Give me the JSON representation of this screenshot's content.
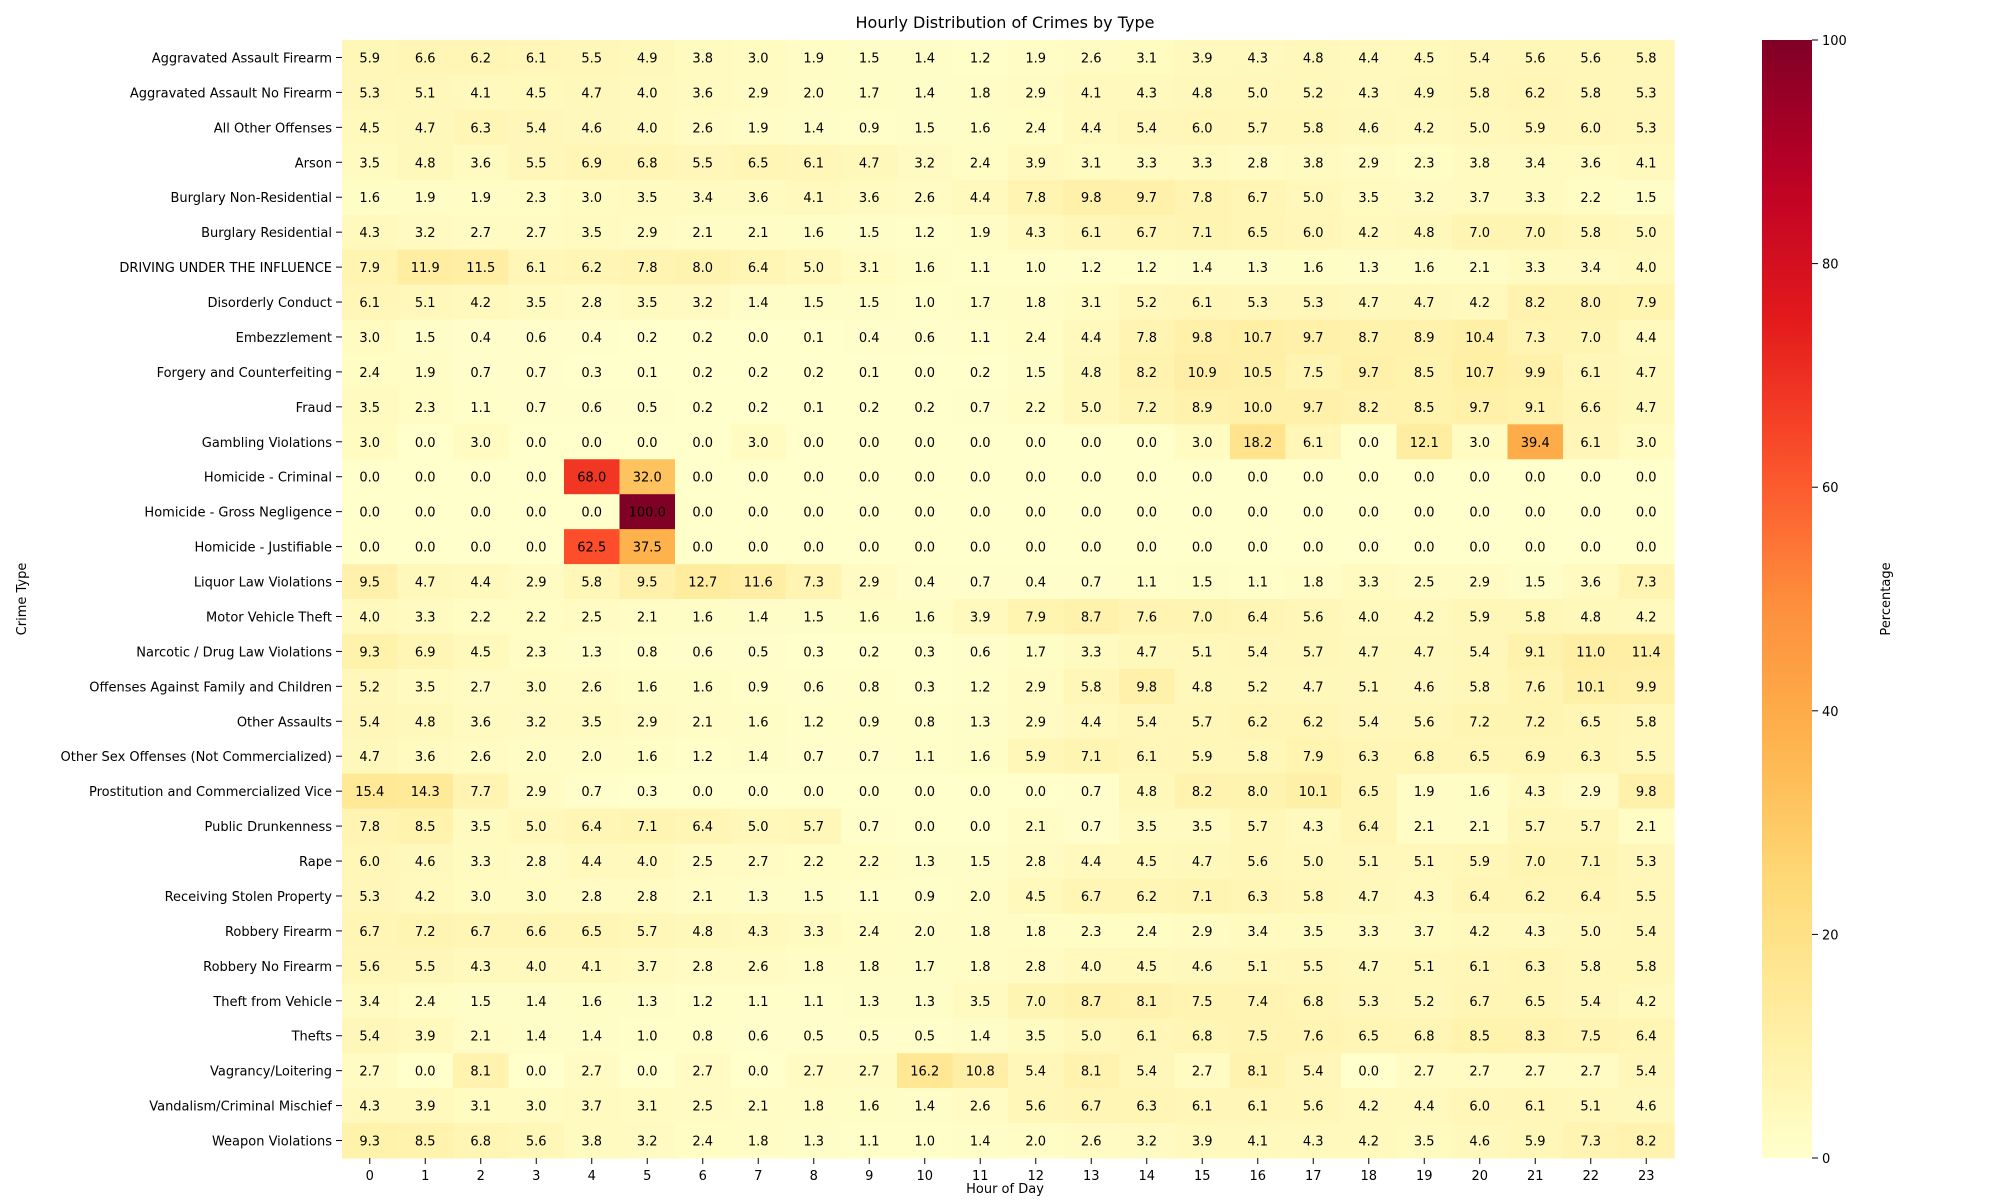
{
  "chart_data": {
    "type": "heatmap",
    "title": "Hourly Distribution of Crimes by Type",
    "xlabel": "Hour of Day",
    "ylabel": "Crime Type",
    "x": [
      0,
      1,
      2,
      3,
      4,
      5,
      6,
      7,
      8,
      9,
      10,
      11,
      12,
      13,
      14,
      15,
      16,
      17,
      18,
      19,
      20,
      21,
      22,
      23
    ],
    "y": [
      "Aggravated Assault Firearm",
      "Aggravated Assault No Firearm",
      "All Other Offenses",
      "Arson",
      "Burglary Non-Residential",
      "Burglary Residential",
      "DRIVING UNDER THE INFLUENCE",
      "Disorderly Conduct",
      "Embezzlement",
      "Forgery and Counterfeiting",
      "Fraud",
      "Gambling Violations",
      "Homicide - Criminal",
      "Homicide - Gross Negligence",
      "Homicide - Justifiable",
      "Liquor Law Violations",
      "Motor Vehicle Theft",
      "Narcotic / Drug Law Violations",
      "Offenses Against Family and Children",
      "Other Assaults",
      "Other Sex Offenses (Not Commercialized)",
      "Prostitution and Commercialized Vice",
      "Public Drunkenness",
      "Rape",
      "Receiving Stolen Property",
      "Robbery Firearm",
      "Robbery No Firearm",
      "Theft from Vehicle",
      "Thefts",
      "Vagrancy/Loitering",
      "Vandalism/Criminal Mischief",
      "Weapon Violations"
    ],
    "values": [
      [
        5.9,
        6.6,
        6.2,
        6.1,
        5.5,
        4.9,
        3.8,
        3.0,
        1.9,
        1.5,
        1.4,
        1.2,
        1.9,
        2.6,
        3.1,
        3.9,
        4.3,
        4.8,
        4.4,
        4.5,
        5.4,
        5.6,
        5.6,
        5.8
      ],
      [
        5.3,
        5.1,
        4.1,
        4.5,
        4.7,
        4.0,
        3.6,
        2.9,
        2.0,
        1.7,
        1.4,
        1.8,
        2.9,
        4.1,
        4.3,
        4.8,
        5.0,
        5.2,
        4.3,
        4.9,
        5.8,
        6.2,
        5.8,
        5.3
      ],
      [
        4.5,
        4.7,
        6.3,
        5.4,
        4.6,
        4.0,
        2.6,
        1.9,
        1.4,
        0.9,
        1.5,
        1.6,
        2.4,
        4.4,
        5.4,
        6.0,
        5.7,
        5.8,
        4.6,
        4.2,
        5.0,
        5.9,
        6.0,
        5.3
      ],
      [
        3.5,
        4.8,
        3.6,
        5.5,
        6.9,
        6.8,
        5.5,
        6.5,
        6.1,
        4.7,
        3.2,
        2.4,
        3.9,
        3.1,
        3.3,
        3.3,
        2.8,
        3.8,
        2.9,
        2.3,
        3.8,
        3.4,
        3.6,
        4.1
      ],
      [
        1.6,
        1.9,
        1.9,
        2.3,
        3.0,
        3.5,
        3.4,
        3.6,
        4.1,
        3.6,
        2.6,
        4.4,
        7.8,
        9.8,
        9.7,
        7.8,
        6.7,
        5.0,
        3.5,
        3.2,
        3.7,
        3.3,
        2.2,
        1.5
      ],
      [
        4.3,
        3.2,
        2.7,
        2.7,
        3.5,
        2.9,
        2.1,
        2.1,
        1.6,
        1.5,
        1.2,
        1.9,
        4.3,
        6.1,
        6.7,
        7.1,
        6.5,
        6.0,
        4.2,
        4.8,
        7.0,
        7.0,
        5.8,
        5.0
      ],
      [
        7.9,
        11.9,
        11.5,
        6.1,
        6.2,
        7.8,
        8.0,
        6.4,
        5.0,
        3.1,
        1.6,
        1.1,
        1.0,
        1.2,
        1.2,
        1.4,
        1.3,
        1.6,
        1.3,
        1.6,
        2.1,
        3.3,
        3.4,
        4.0
      ],
      [
        6.1,
        5.1,
        4.2,
        3.5,
        2.8,
        3.5,
        3.2,
        1.4,
        1.5,
        1.5,
        1.0,
        1.7,
        1.8,
        3.1,
        5.2,
        6.1,
        5.3,
        5.3,
        4.7,
        4.7,
        4.2,
        8.2,
        8.0,
        7.9
      ],
      [
        3.0,
        1.5,
        0.4,
        0.6,
        0.4,
        0.2,
        0.2,
        0.0,
        0.1,
        0.4,
        0.6,
        1.1,
        2.4,
        4.4,
        7.8,
        9.8,
        10.7,
        9.7,
        8.7,
        8.9,
        10.4,
        7.3,
        7.0,
        4.4
      ],
      [
        2.4,
        1.9,
        0.7,
        0.7,
        0.3,
        0.1,
        0.2,
        0.2,
        0.2,
        0.1,
        0.0,
        0.2,
        1.5,
        4.8,
        8.2,
        10.9,
        10.5,
        7.5,
        9.7,
        8.5,
        10.7,
        9.9,
        6.1,
        4.7
      ],
      [
        3.5,
        2.3,
        1.1,
        0.7,
        0.6,
        0.5,
        0.2,
        0.2,
        0.1,
        0.2,
        0.2,
        0.7,
        2.2,
        5.0,
        7.2,
        8.9,
        10.0,
        9.7,
        8.2,
        8.5,
        9.7,
        9.1,
        6.6,
        4.7
      ],
      [
        3.0,
        0.0,
        3.0,
        0.0,
        0.0,
        0.0,
        0.0,
        3.0,
        0.0,
        0.0,
        0.0,
        0.0,
        0.0,
        0.0,
        0.0,
        3.0,
        18.2,
        6.1,
        0.0,
        12.1,
        3.0,
        39.4,
        6.1,
        3.0
      ],
      [
        0.0,
        0.0,
        0.0,
        0.0,
        68.0,
        32.0,
        0.0,
        0.0,
        0.0,
        0.0,
        0.0,
        0.0,
        0.0,
        0.0,
        0.0,
        0.0,
        0.0,
        0.0,
        0.0,
        0.0,
        0.0,
        0.0,
        0.0,
        0.0
      ],
      [
        0.0,
        0.0,
        0.0,
        0.0,
        0.0,
        100.0,
        0.0,
        0.0,
        0.0,
        0.0,
        0.0,
        0.0,
        0.0,
        0.0,
        0.0,
        0.0,
        0.0,
        0.0,
        0.0,
        0.0,
        0.0,
        0.0,
        0.0,
        0.0
      ],
      [
        0.0,
        0.0,
        0.0,
        0.0,
        62.5,
        37.5,
        0.0,
        0.0,
        0.0,
        0.0,
        0.0,
        0.0,
        0.0,
        0.0,
        0.0,
        0.0,
        0.0,
        0.0,
        0.0,
        0.0,
        0.0,
        0.0,
        0.0,
        0.0
      ],
      [
        9.5,
        4.7,
        4.4,
        2.9,
        5.8,
        9.5,
        12.7,
        11.6,
        7.3,
        2.9,
        0.4,
        0.7,
        0.4,
        0.7,
        1.1,
        1.5,
        1.1,
        1.8,
        3.3,
        2.5,
        2.9,
        1.5,
        3.6,
        7.3
      ],
      [
        4.0,
        3.3,
        2.2,
        2.2,
        2.5,
        2.1,
        1.6,
        1.4,
        1.5,
        1.6,
        1.6,
        3.9,
        7.9,
        8.7,
        7.6,
        7.0,
        6.4,
        5.6,
        4.0,
        4.2,
        5.9,
        5.8,
        4.8,
        4.2
      ],
      [
        9.3,
        6.9,
        4.5,
        2.3,
        1.3,
        0.8,
        0.6,
        0.5,
        0.3,
        0.2,
        0.3,
        0.6,
        1.7,
        3.3,
        4.7,
        5.1,
        5.4,
        5.7,
        4.7,
        4.7,
        5.4,
        9.1,
        11.0,
        11.4
      ],
      [
        5.2,
        3.5,
        2.7,
        3.0,
        2.6,
        1.6,
        1.6,
        0.9,
        0.6,
        0.8,
        0.3,
        1.2,
        2.9,
        5.8,
        9.8,
        4.8,
        5.2,
        4.7,
        5.1,
        4.6,
        5.8,
        7.6,
        10.1,
        9.9
      ],
      [
        5.4,
        4.8,
        3.6,
        3.2,
        3.5,
        2.9,
        2.1,
        1.6,
        1.2,
        0.9,
        0.8,
        1.3,
        2.9,
        4.4,
        5.4,
        5.7,
        6.2,
        6.2,
        5.4,
        5.6,
        7.2,
        7.2,
        6.5,
        5.8
      ],
      [
        4.7,
        3.6,
        2.6,
        2.0,
        2.0,
        1.6,
        1.2,
        1.4,
        0.7,
        0.7,
        1.1,
        1.6,
        5.9,
        7.1,
        6.1,
        5.9,
        5.8,
        7.9,
        6.3,
        6.8,
        6.5,
        6.9,
        6.3,
        5.5
      ],
      [
        15.4,
        14.3,
        7.7,
        2.9,
        0.7,
        0.3,
        0.0,
        0.0,
        0.0,
        0.0,
        0.0,
        0.0,
        0.0,
        0.7,
        4.8,
        8.2,
        8.0,
        10.1,
        6.5,
        1.9,
        1.6,
        4.3,
        2.9,
        9.8
      ],
      [
        7.8,
        8.5,
        3.5,
        5.0,
        6.4,
        7.1,
        6.4,
        5.0,
        5.7,
        0.7,
        0.0,
        0.0,
        2.1,
        0.7,
        3.5,
        3.5,
        5.7,
        4.3,
        6.4,
        2.1,
        2.1,
        5.7,
        5.7,
        2.1
      ],
      [
        6.0,
        4.6,
        3.3,
        2.8,
        4.4,
        4.0,
        2.5,
        2.7,
        2.2,
        2.2,
        1.3,
        1.5,
        2.8,
        4.4,
        4.5,
        4.7,
        5.6,
        5.0,
        5.1,
        5.1,
        5.9,
        7.0,
        7.1,
        5.3
      ],
      [
        5.3,
        4.2,
        3.0,
        3.0,
        2.8,
        2.8,
        2.1,
        1.3,
        1.5,
        1.1,
        0.9,
        2.0,
        4.5,
        6.7,
        6.2,
        7.1,
        6.3,
        5.8,
        4.7,
        4.3,
        6.4,
        6.2,
        6.4,
        5.5
      ],
      [
        6.7,
        7.2,
        6.7,
        6.6,
        6.5,
        5.7,
        4.8,
        4.3,
        3.3,
        2.4,
        2.0,
        1.8,
        1.8,
        2.3,
        2.4,
        2.9,
        3.4,
        3.5,
        3.3,
        3.7,
        4.2,
        4.3,
        5.0,
        5.4
      ],
      [
        5.6,
        5.5,
        4.3,
        4.0,
        4.1,
        3.7,
        2.8,
        2.6,
        1.8,
        1.8,
        1.7,
        1.8,
        2.8,
        4.0,
        4.5,
        4.6,
        5.1,
        5.5,
        4.7,
        5.1,
        6.1,
        6.3,
        5.8,
        5.8
      ],
      [
        3.4,
        2.4,
        1.5,
        1.4,
        1.6,
        1.3,
        1.2,
        1.1,
        1.1,
        1.3,
        1.3,
        3.5,
        7.0,
        8.7,
        8.1,
        7.5,
        7.4,
        6.8,
        5.3,
        5.2,
        6.7,
        6.5,
        5.4,
        4.2
      ],
      [
        5.4,
        3.9,
        2.1,
        1.4,
        1.4,
        1.0,
        0.8,
        0.6,
        0.5,
        0.5,
        0.5,
        1.4,
        3.5,
        5.0,
        6.1,
        6.8,
        7.5,
        7.6,
        6.5,
        6.8,
        8.5,
        8.3,
        7.5,
        6.4
      ],
      [
        2.7,
        0.0,
        8.1,
        0.0,
        2.7,
        0.0,
        2.7,
        0.0,
        2.7,
        2.7,
        16.2,
        10.8,
        5.4,
        8.1,
        5.4,
        2.7,
        8.1,
        5.4,
        0.0,
        2.7,
        2.7,
        2.7,
        2.7,
        5.4
      ],
      [
        4.3,
        3.9,
        3.1,
        3.0,
        3.7,
        3.1,
        2.5,
        2.1,
        1.8,
        1.6,
        1.4,
        2.6,
        5.6,
        6.7,
        6.3,
        6.1,
        6.1,
        5.6,
        4.2,
        4.4,
        6.0,
        6.1,
        5.1,
        4.6
      ],
      [
        9.3,
        8.5,
        6.8,
        5.6,
        3.8,
        3.2,
        2.4,
        1.8,
        1.3,
        1.1,
        1.0,
        1.4,
        2.0,
        2.6,
        3.2,
        3.9,
        4.1,
        4.3,
        4.2,
        3.5,
        4.6,
        5.9,
        7.3,
        8.2
      ]
    ],
    "value_format": "0.1f",
    "colormap": "YlOrRd",
    "vmin": 0,
    "vmax": 100,
    "colorbar": {
      "label": "Percentage",
      "ticks": [
        0,
        20,
        40,
        60,
        80,
        100
      ]
    },
    "grid": false,
    "legend": "colorbar-right"
  }
}
